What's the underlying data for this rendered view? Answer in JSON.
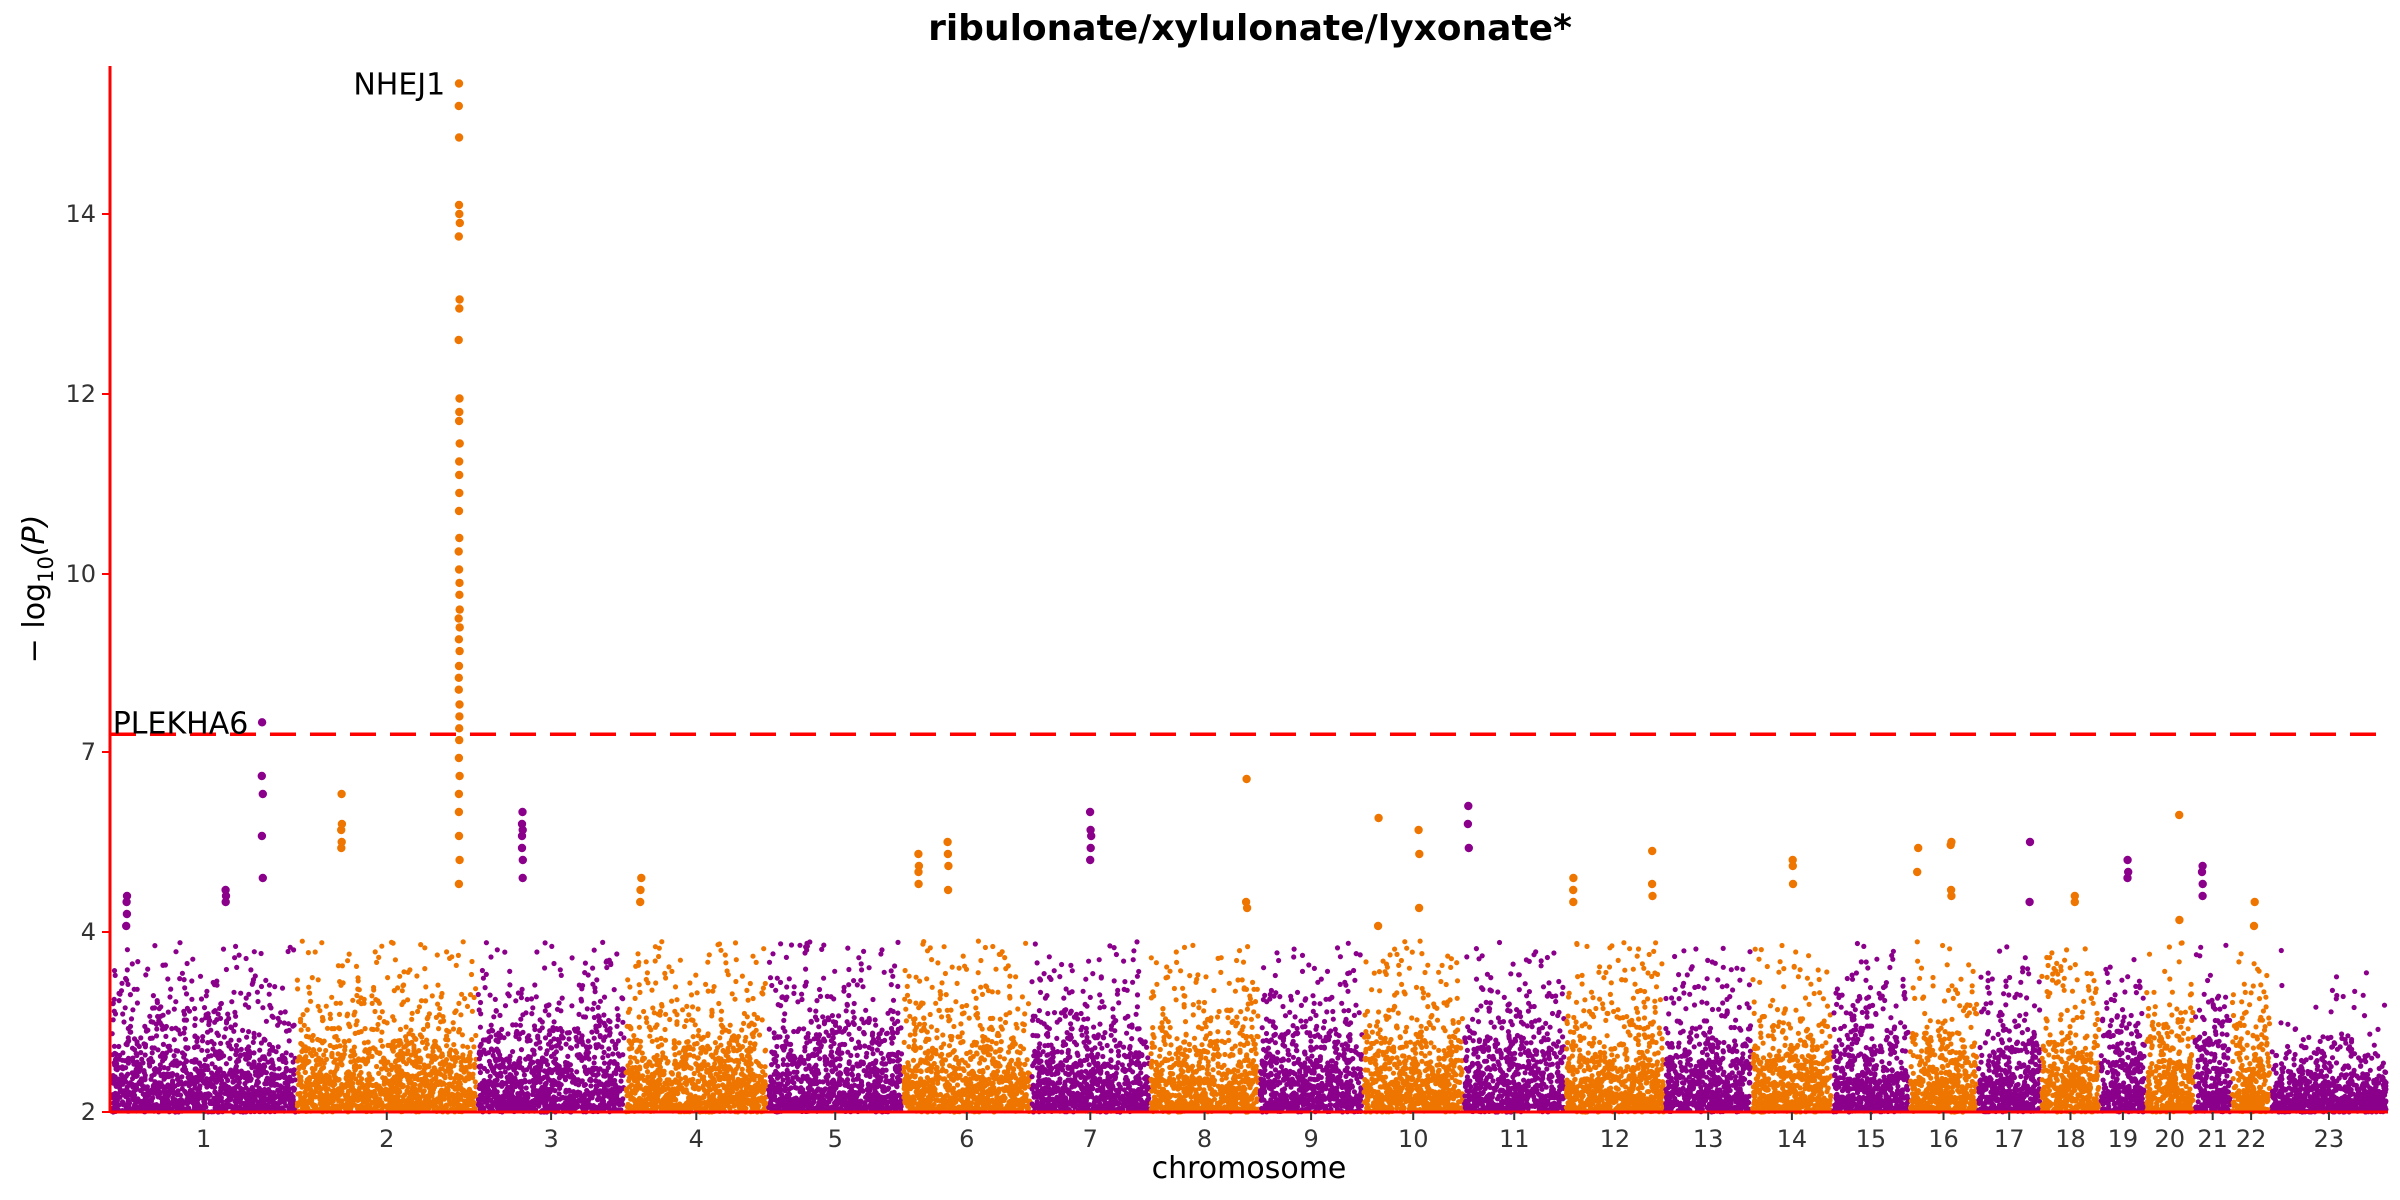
{
  "chart_data": {
    "type": "scatter",
    "title": "ribulonate/xylulonate/lyxonate*",
    "xlabel": "chromosome",
    "ylabel": "− log",
    "ylabel_sub": "10",
    "ylabel_arg": "(P)",
    "y_scale": "squashed-above-7",
    "ylim": [
      2,
      15.6
    ],
    "y_ticks": [
      2,
      4,
      7,
      10,
      12,
      14
    ],
    "significance_line": 7.3,
    "colors": {
      "odd": "#8B008B",
      "even": "#EE7600",
      "axis": "#FF0000",
      "threshold": "#FF0000"
    },
    "chromosomes": [
      {
        "label": "1",
        "lengthMb": 249
      },
      {
        "label": "2",
        "lengthMb": 243
      },
      {
        "label": "3",
        "lengthMb": 198
      },
      {
        "label": "4",
        "lengthMb": 191
      },
      {
        "label": "5",
        "lengthMb": 181
      },
      {
        "label": "6",
        "lengthMb": 171
      },
      {
        "label": "7",
        "lengthMb": 159
      },
      {
        "label": "8",
        "lengthMb": 146
      },
      {
        "label": "9",
        "lengthMb": 138
      },
      {
        "label": "10",
        "lengthMb": 134
      },
      {
        "label": "11",
        "lengthMb": 135
      },
      {
        "label": "12",
        "lengthMb": 133
      },
      {
        "label": "13",
        "lengthMb": 115
      },
      {
        "label": "14",
        "lengthMb": 107
      },
      {
        "label": "15",
        "lengthMb": 102
      },
      {
        "label": "16",
        "lengthMb": 90
      },
      {
        "label": "17",
        "lengthMb": 83
      },
      {
        "label": "18",
        "lengthMb": 78
      },
      {
        "label": "19",
        "lengthMb": 59
      },
      {
        "label": "20",
        "lengthMb": 63
      },
      {
        "label": "21",
        "lengthMb": 48
      },
      {
        "label": "22",
        "lengthMb": 51
      },
      {
        "label": "23",
        "lengthMb": 155
      }
    ],
    "annotations": [
      {
        "label": "NHEJ1",
        "chr": "2",
        "pos": 219.9,
        "y": 15.45
      },
      {
        "label": "PLEKHA6",
        "chr": "1",
        "pos": 204.2,
        "y": 7.5
      }
    ],
    "peaks": [
      {
        "chr": "1",
        "pos": 20,
        "y": [
          4.6,
          4.5,
          4.3,
          4.1
        ]
      },
      {
        "chr": "1",
        "pos": 155,
        "y": [
          4.7,
          4.6,
          4.5
        ]
      },
      {
        "chr": "1",
        "pos": 204.2,
        "y": [
          7.5,
          6.6,
          6.3,
          5.6,
          4.9
        ]
      },
      {
        "chr": "2",
        "pos": 60,
        "y": [
          6.3,
          5.8,
          5.7,
          5.5,
          5.4
        ]
      },
      {
        "chr": "2",
        "pos": 219.9,
        "y": [
          15.45,
          15.2,
          14.85,
          14.1,
          14.0,
          13.9,
          13.75,
          13.05,
          12.95,
          12.6,
          11.95,
          11.8,
          11.7,
          11.45,
          11.25,
          11.1,
          10.9,
          10.7,
          10.4,
          10.25,
          10.05,
          9.85,
          9.65,
          9.4,
          9.25,
          9.1,
          8.9,
          8.7,
          8.45,
          8.25,
          8.05,
          7.8,
          7.6,
          7.4,
          7.2,
          6.9,
          6.6,
          6.3,
          6.0,
          5.6,
          5.2,
          4.8
        ]
      },
      {
        "chr": "3",
        "pos": 60,
        "y": [
          6.0,
          5.8,
          5.7,
          5.6,
          5.4,
          5.2,
          4.9
        ]
      },
      {
        "chr": "4",
        "pos": 20,
        "y": [
          4.9,
          4.7,
          4.5
        ]
      },
      {
        "chr": "6",
        "pos": 20,
        "y": [
          5.3,
          5.1,
          5.0,
          4.8
        ]
      },
      {
        "chr": "6",
        "pos": 60,
        "y": [
          5.5,
          5.3,
          5.1,
          4.7
        ]
      },
      {
        "chr": "7",
        "pos": 80,
        "y": [
          6.0,
          5.7,
          5.6,
          5.4,
          5.2
        ]
      },
      {
        "chr": "8",
        "pos": 130,
        "y": [
          6.55,
          4.5,
          4.4
        ]
      },
      {
        "chr": "10",
        "pos": 20,
        "y": [
          5.9,
          4.1
        ]
      },
      {
        "chr": "10",
        "pos": 75,
        "y": [
          5.7,
          5.3,
          4.4
        ]
      },
      {
        "chr": "11",
        "pos": 5,
        "y": [
          6.1,
          5.8,
          5.4
        ]
      },
      {
        "chr": "12",
        "pos": 10,
        "y": [
          4.9,
          4.7,
          4.5
        ]
      },
      {
        "chr": "12",
        "pos": 117,
        "y": [
          5.35,
          4.8,
          4.6
        ]
      },
      {
        "chr": "14",
        "pos": 55,
        "y": [
          5.2,
          5.1,
          4.8
        ]
      },
      {
        "chr": "16",
        "pos": 10,
        "y": [
          5.4,
          5.0
        ]
      },
      {
        "chr": "16",
        "pos": 55,
        "y": [
          5.5,
          5.45,
          4.7,
          4.6
        ]
      },
      {
        "chr": "17",
        "pos": 70,
        "y": [
          5.5,
          4.5
        ]
      },
      {
        "chr": "18",
        "pos": 45,
        "y": [
          4.6,
          4.5
        ]
      },
      {
        "chr": "19",
        "pos": 36,
        "y": [
          5.2,
          5.0,
          4.9
        ]
      },
      {
        "chr": "20",
        "pos": 45,
        "y": [
          5.95,
          4.2
        ]
      },
      {
        "chr": "21",
        "pos": 10,
        "y": [
          5.1,
          5.0,
          4.8,
          4.6
        ]
      },
      {
        "chr": "22",
        "pos": 30,
        "y": [
          4.5,
          4.1
        ]
      }
    ]
  }
}
